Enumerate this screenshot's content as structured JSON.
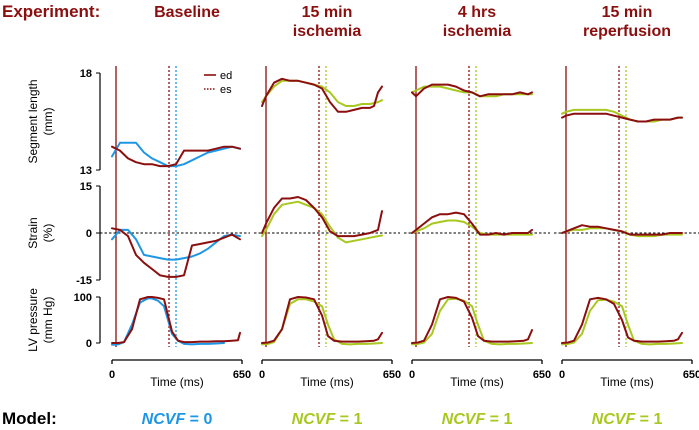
{
  "figure": {
    "experiment_label": "Experiment:",
    "model_label": "Model:",
    "xlabel": "Time (ms)",
    "legend": [
      {
        "label": "ed",
        "style": "solid"
      },
      {
        "label": "es",
        "style": "dotted"
      }
    ],
    "rows": [
      {
        "ylabel": [
          "Segment length",
          "(mm)"
        ],
        "ticks": [
          "18",
          "13"
        ],
        "ylim": [
          13,
          18
        ]
      },
      {
        "ylabel": [
          "Strain",
          "(%)"
        ],
        "ticks": [
          "15",
          "0",
          "-15"
        ],
        "ylim": [
          -15,
          15
        ]
      },
      {
        "ylabel": [
          "LV pressure",
          "(mm Hg)"
        ],
        "ticks": [
          "100",
          "0"
        ],
        "ylim": [
          0,
          100
        ]
      }
    ],
    "xticks": [
      "0",
      "650"
    ],
    "colors": {
      "experiment": "#8b0f0f",
      "baseline_model": "#1e96e6",
      "ischemia_model": "#a8c820",
      "axis": "#000000"
    }
  },
  "chart_data": [
    {
      "type": "line",
      "title": "Baseline",
      "model_label": "NCVF = 0",
      "model_color": "#1e96e6",
      "xlim": [
        0,
        650
      ],
      "ed_ms": 20,
      "es_exp_ms": 285,
      "es_model_ms": 320,
      "segment_length": {
        "experiment": {
          "x": [
            0,
            40,
            80,
            120,
            160,
            200,
            240,
            280,
            320,
            360,
            400,
            440,
            480,
            520,
            560,
            600,
            640
          ],
          "y": [
            14.2,
            14.0,
            13.6,
            13.4,
            13.3,
            13.3,
            13.2,
            13.2,
            13.3,
            14.0,
            14.0,
            14.0,
            14.0,
            14.1,
            14.2,
            14.2,
            14.1
          ]
        },
        "model": {
          "x": [
            0,
            40,
            80,
            120,
            160,
            200,
            240,
            280,
            320,
            360,
            400,
            440,
            480,
            520,
            560,
            600,
            640
          ],
          "y": [
            13.7,
            14.4,
            14.4,
            14.4,
            13.9,
            13.6,
            13.4,
            13.2,
            13.2,
            13.3,
            13.5,
            13.7,
            13.9,
            14.0,
            14.1,
            14.2,
            14.1
          ]
        }
      },
      "strain": {
        "experiment": {
          "x": [
            0,
            40,
            80,
            120,
            160,
            200,
            240,
            280,
            320,
            360,
            400,
            440,
            480,
            520,
            560,
            600,
            640
          ],
          "y": [
            1.5,
            1.0,
            -1.0,
            -7.0,
            -9.5,
            -11.5,
            -13.5,
            -14.0,
            -14.0,
            -13.5,
            -4.0,
            -3.5,
            -3.0,
            -2.5,
            -1.5,
            -0.5,
            -2.0
          ]
        },
        "model": {
          "x": [
            0,
            40,
            80,
            120,
            160,
            200,
            240,
            280,
            320,
            360,
            400,
            440,
            480,
            520,
            560,
            600,
            640
          ],
          "y": [
            -2.0,
            1.0,
            1.0,
            -2.0,
            -7.0,
            -7.5,
            -8.0,
            -8.5,
            -8.5,
            -8.0,
            -7.5,
            -6.5,
            -5.0,
            -3.0,
            -1.0,
            -0.5,
            -1.0
          ]
        }
      },
      "pressure": {
        "experiment": {
          "x": [
            0,
            30,
            60,
            100,
            140,
            180,
            200,
            230,
            260,
            280,
            300,
            330,
            360,
            400,
            440,
            480,
            520,
            560,
            600,
            630,
            640
          ],
          "y": [
            0,
            0,
            2,
            30,
            95,
            100,
            100,
            98,
            95,
            60,
            25,
            5,
            2,
            2,
            3,
            3,
            4,
            4,
            5,
            6,
            22
          ]
        },
        "model": {
          "x": [
            0,
            30,
            60,
            100,
            140,
            180,
            200,
            230,
            260,
            280,
            300,
            330,
            360,
            400,
            440,
            480,
            520,
            560
          ],
          "y": [
            -4,
            -3,
            2,
            40,
            88,
            97,
            97,
            92,
            80,
            50,
            20,
            5,
            -2,
            -3,
            -2,
            -2,
            -1,
            0
          ]
        }
      }
    },
    {
      "type": "line",
      "title": "15 min ischemia",
      "model_label": "NCVF = 1",
      "model_color": "#a8c820",
      "xlim": [
        0,
        650
      ],
      "ed_ms": 20,
      "es_exp_ms": 285,
      "es_model_ms": 320,
      "segment_length": {
        "experiment": {
          "x": [
            0,
            20,
            60,
            100,
            140,
            180,
            220,
            260,
            300,
            340,
            380,
            420,
            460,
            500,
            540,
            560,
            580,
            600
          ],
          "y": [
            16.3,
            16.8,
            17.5,
            17.7,
            17.6,
            17.6,
            17.5,
            17.4,
            17.2,
            16.5,
            16.0,
            16.0,
            16.1,
            16.2,
            16.2,
            16.3,
            17.0,
            17.3
          ]
        },
        "model": {
          "x": [
            0,
            20,
            60,
            100,
            140,
            180,
            220,
            260,
            300,
            340,
            380,
            420,
            460,
            500,
            540,
            580,
            600
          ],
          "y": [
            16.5,
            16.8,
            17.3,
            17.6,
            17.6,
            17.6,
            17.5,
            17.4,
            17.3,
            17.0,
            16.5,
            16.3,
            16.3,
            16.4,
            16.4,
            16.5,
            16.6
          ]
        }
      },
      "strain": {
        "experiment": {
          "x": [
            0,
            20,
            60,
            100,
            140,
            180,
            220,
            260,
            300,
            340,
            380,
            420,
            460,
            500,
            540,
            560,
            580,
            600
          ],
          "y": [
            0.0,
            3.0,
            8.0,
            11.0,
            11.0,
            11.5,
            10.5,
            8.0,
            5.0,
            0.5,
            -1.0,
            -1.0,
            -1.0,
            -0.5,
            0.0,
            0.5,
            1.0,
            7.0
          ]
        },
        "model": {
          "x": [
            0,
            20,
            60,
            100,
            140,
            180,
            220,
            260,
            300,
            340,
            380,
            420,
            460,
            500,
            540,
            580,
            600
          ],
          "y": [
            -1.0,
            1.0,
            6.0,
            9.0,
            9.5,
            10.0,
            9.0,
            8.0,
            6.0,
            2.0,
            -1.5,
            -3.0,
            -2.5,
            -2.0,
            -1.5,
            -1.0,
            -0.8
          ]
        }
      },
      "pressure": {
        "experiment": {
          "x": [
            0,
            30,
            60,
            100,
            140,
            180,
            220,
            260,
            300,
            330,
            360,
            400,
            440,
            480,
            520,
            560,
            580,
            600
          ],
          "y": [
            0,
            1,
            5,
            30,
            95,
            100,
            99,
            95,
            60,
            15,
            5,
            3,
            3,
            3,
            4,
            5,
            8,
            22
          ]
        },
        "model": {
          "x": [
            0,
            30,
            60,
            100,
            140,
            180,
            220,
            260,
            300,
            330,
            360,
            400,
            440,
            480,
            520,
            560,
            600
          ],
          "y": [
            -3,
            -2,
            2,
            30,
            85,
            95,
            95,
            90,
            80,
            40,
            8,
            -2,
            -3,
            -2,
            -2,
            -1,
            0
          ]
        }
      }
    },
    {
      "type": "line",
      "title": "4 hrs ischemia",
      "model_label": "NCVF = 1",
      "model_color": "#a8c820",
      "xlim": [
        0,
        650
      ],
      "ed_ms": 20,
      "es_exp_ms": 285,
      "es_model_ms": 320,
      "segment_length": {
        "experiment": {
          "x": [
            0,
            20,
            60,
            100,
            140,
            180,
            220,
            260,
            300,
            340,
            380,
            420,
            460,
            500,
            540,
            580,
            600
          ],
          "y": [
            17.0,
            16.8,
            17.2,
            17.4,
            17.4,
            17.4,
            17.3,
            17.1,
            17.0,
            16.8,
            16.9,
            16.9,
            16.9,
            16.9,
            17.0,
            16.9,
            17.0
          ]
        },
        "model": {
          "x": [
            0,
            20,
            60,
            100,
            140,
            180,
            220,
            260,
            300,
            340,
            380,
            420,
            460,
            500,
            540,
            580,
            600
          ],
          "y": [
            17.0,
            17.1,
            17.3,
            17.3,
            17.3,
            17.2,
            17.1,
            17.0,
            17.0,
            16.8,
            16.8,
            16.8,
            16.9,
            16.9,
            16.9,
            16.9,
            16.9
          ]
        }
      },
      "strain": {
        "experiment": {
          "x": [
            0,
            20,
            60,
            100,
            140,
            180,
            220,
            260,
            300,
            340,
            380,
            420,
            460,
            500,
            540,
            580,
            600
          ],
          "y": [
            0.0,
            1.0,
            3.0,
            5.0,
            6.0,
            6.0,
            6.5,
            6.0,
            3.0,
            -0.5,
            -0.5,
            0.0,
            -0.5,
            0.0,
            0.0,
            0.0,
            1.0
          ]
        },
        "model": {
          "x": [
            0,
            20,
            60,
            100,
            140,
            180,
            220,
            260,
            300,
            340,
            380,
            420,
            460,
            500,
            540,
            580,
            600
          ],
          "y": [
            0.0,
            0.5,
            1.5,
            3.0,
            3.5,
            4.0,
            4.0,
            3.5,
            2.0,
            0.0,
            -0.5,
            -0.5,
            -0.5,
            -0.5,
            -0.5,
            -0.5,
            -0.5
          ]
        }
      },
      "pressure": {
        "experiment": {
          "x": [
            0,
            30,
            60,
            100,
            140,
            180,
            220,
            260,
            300,
            330,
            360,
            400,
            440,
            480,
            520,
            560,
            580,
            600
          ],
          "y": [
            0,
            1,
            5,
            40,
            95,
            100,
            98,
            90,
            55,
            15,
            5,
            3,
            3,
            3,
            4,
            5,
            8,
            28
          ]
        },
        "model": {
          "x": [
            0,
            30,
            60,
            100,
            140,
            180,
            220,
            260,
            300,
            330,
            360,
            400,
            440,
            480,
            520,
            560,
            600
          ],
          "y": [
            -3,
            -2,
            1,
            20,
            70,
            95,
            96,
            92,
            80,
            40,
            5,
            -2,
            -3,
            -2,
            -2,
            -1,
            0
          ]
        }
      }
    },
    {
      "type": "line",
      "title": "15 min reperfusion",
      "model_label": "NCVF = 1",
      "model_color": "#a8c820",
      "xlim": [
        0,
        650
      ],
      "ed_ms": 20,
      "es_exp_ms": 285,
      "es_model_ms": 320,
      "segment_length": {
        "experiment": {
          "x": [
            0,
            20,
            60,
            100,
            140,
            180,
            220,
            260,
            300,
            340,
            380,
            420,
            460,
            500,
            540,
            580,
            600
          ],
          "y": [
            15.7,
            15.8,
            15.9,
            15.9,
            15.9,
            15.9,
            15.9,
            15.8,
            15.7,
            15.6,
            15.5,
            15.5,
            15.6,
            15.6,
            15.6,
            15.7,
            15.7
          ]
        },
        "model": {
          "x": [
            0,
            20,
            60,
            100,
            140,
            180,
            220,
            260,
            300,
            340,
            380,
            420,
            460,
            500,
            540,
            580,
            600
          ],
          "y": [
            15.9,
            16.0,
            16.1,
            16.1,
            16.1,
            16.1,
            16.1,
            16.0,
            15.8,
            15.6,
            15.5,
            15.5,
            15.5,
            15.6,
            15.6,
            15.7,
            15.7
          ]
        }
      },
      "strain": {
        "experiment": {
          "x": [
            0,
            20,
            60,
            100,
            140,
            180,
            220,
            260,
            300,
            340,
            380,
            420,
            460,
            500,
            540,
            580,
            600
          ],
          "y": [
            0.0,
            0.5,
            1.5,
            2.5,
            2.0,
            2.0,
            1.5,
            1.0,
            0.5,
            -0.5,
            -0.5,
            -0.5,
            -0.5,
            -0.5,
            0.0,
            0.0,
            0.0
          ]
        },
        "model": {
          "x": [
            0,
            20,
            60,
            100,
            140,
            180,
            220,
            260,
            300,
            340,
            380,
            420,
            460,
            500,
            540,
            580,
            600
          ],
          "y": [
            0.0,
            0.5,
            1.0,
            1.0,
            1.5,
            1.5,
            1.5,
            1.0,
            0.5,
            -0.5,
            -1.0,
            -1.0,
            -1.0,
            -0.5,
            -0.5,
            -0.5,
            -0.5
          ]
        }
      },
      "pressure": {
        "experiment": {
          "x": [
            0,
            30,
            60,
            100,
            140,
            180,
            220,
            260,
            300,
            330,
            360,
            400,
            440,
            480,
            520,
            560,
            580,
            600
          ],
          "y": [
            0,
            1,
            5,
            40,
            95,
            98,
            95,
            85,
            50,
            12,
            5,
            3,
            3,
            3,
            4,
            5,
            8,
            22
          ]
        },
        "model": {
          "x": [
            0,
            30,
            60,
            100,
            140,
            180,
            220,
            260,
            300,
            330,
            360,
            400,
            440,
            480,
            520,
            560,
            600
          ],
          "y": [
            -3,
            -2,
            1,
            20,
            70,
            93,
            94,
            90,
            80,
            40,
            5,
            -2,
            -3,
            -2,
            -2,
            -1,
            0
          ]
        }
      }
    }
  ]
}
